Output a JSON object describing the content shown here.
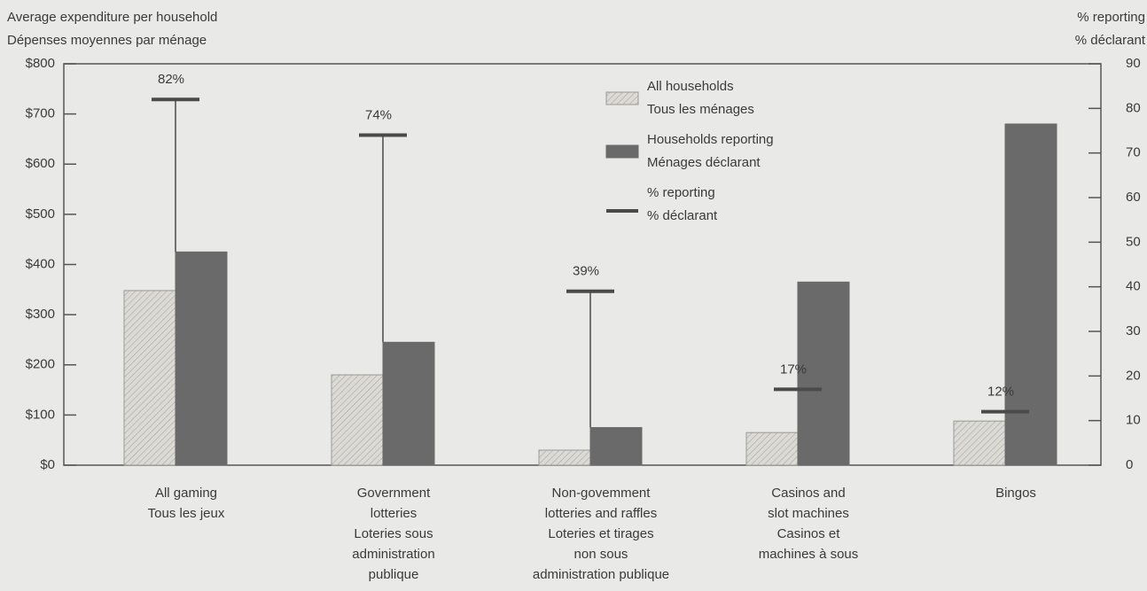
{
  "chart_data": {
    "type": "bar",
    "y_label": [
      "Average expenditure per household",
      "Dépenses moyennes par ménage"
    ],
    "y2_label": [
      "% reporting",
      "% déclarant"
    ],
    "categories": [
      [
        "All gaming",
        "Tous les jeux"
      ],
      [
        "Government",
        "lotteries",
        "Loteries sous",
        "administration",
        "publique"
      ],
      [
        "Non-govemment",
        "lotteries and raffles",
        "Loteries et tirages",
        "non sous",
        "administration publique"
      ],
      [
        "Casinos and",
        "slot machines",
        "Casinos et",
        "machines à sous"
      ],
      [
        "Bingos"
      ]
    ],
    "series": [
      {
        "name": [
          "All households",
          "Tous les ménages"
        ],
        "color": "#dcdad5",
        "hatch": true,
        "values": [
          348,
          180,
          30,
          65,
          88
        ]
      },
      {
        "name": [
          "Households reporting",
          "Ménages déclarant"
        ],
        "color": "#6a6a6a",
        "values": [
          425,
          245,
          75,
          365,
          680
        ]
      },
      {
        "name": [
          "% reporting",
          "% déclarant"
        ],
        "color": "#4a4a4a",
        "axis": "y2",
        "values": [
          82,
          74,
          39,
          17,
          12
        ],
        "value_labels": [
          "82%",
          "74%",
          "39%",
          "17%",
          "12%"
        ]
      }
    ],
    "ylim": [
      0,
      800
    ],
    "yticks": [
      {
        "value": 0,
        "label": "$0"
      },
      {
        "value": 100,
        "label": "$100"
      },
      {
        "value": 200,
        "label": "$200"
      },
      {
        "value": 300,
        "label": "$300"
      },
      {
        "value": 400,
        "label": "$400"
      },
      {
        "value": 500,
        "label": "$500"
      },
      {
        "value": 600,
        "label": "$600"
      },
      {
        "value": 700,
        "label": "$700"
      },
      {
        "value": 800,
        "label": "$800"
      }
    ],
    "y2lim": [
      0,
      90
    ],
    "y2ticks": [
      0,
      10,
      20,
      30,
      40,
      50,
      60,
      70,
      80,
      90
    ]
  }
}
